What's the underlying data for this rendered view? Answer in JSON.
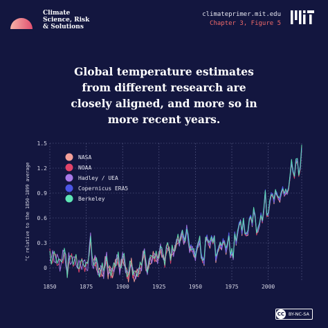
{
  "header": {
    "brand_lines": [
      "Climate",
      "Science, Risk",
      "& Solutions"
    ],
    "site_url": "climateprimer.mit.edu",
    "figure_label": "Chapter 3, Figure 5",
    "license_icon": "CC",
    "license": "BY-NC-SA"
  },
  "headline_lines": [
    "Global temperature estimates",
    "from different research are",
    "closely aligned, and more so in",
    "more recent years."
  ],
  "colors": {
    "background": "#13163f",
    "grid": "#6b6f9c",
    "accent": "#f06a6a"
  },
  "chart_data": {
    "type": "line",
    "title": "",
    "xlabel": "",
    "ylabel": "°C relative to the 1850-1899 average",
    "xlim": [
      1850,
      2023
    ],
    "ylim": [
      -0.15,
      1.5
    ],
    "xticks": [
      1850,
      1875,
      1900,
      1925,
      1950,
      1975,
      2000
    ],
    "yticks": [
      0,
      0.3,
      0.6,
      0.9,
      1.2,
      1.5
    ],
    "ytick_labels": [
      "0",
      "0.3",
      "0.6",
      "0.9",
      "1.2",
      "1.5"
    ],
    "grid": true,
    "legend_position": "top-left",
    "series": [
      {
        "name": "NASA",
        "color": "#f4a09a",
        "start_year": 1880
      },
      {
        "name": "NOAA",
        "color": "#e2446a",
        "start_year": 1850
      },
      {
        "name": "Hadley / UEA",
        "color": "#a779e9",
        "start_year": 1850
      },
      {
        "name": "Copernicus ERA5",
        "color": "#4b56e6",
        "start_year": 1940
      },
      {
        "name": "Berkeley",
        "color": "#5ee6b5",
        "start_year": 1850
      }
    ],
    "years": [
      1850,
      1851,
      1852,
      1853,
      1854,
      1855,
      1856,
      1857,
      1858,
      1859,
      1860,
      1861,
      1862,
      1863,
      1864,
      1865,
      1866,
      1867,
      1868,
      1869,
      1870,
      1871,
      1872,
      1873,
      1874,
      1875,
      1876,
      1877,
      1878,
      1879,
      1880,
      1881,
      1882,
      1883,
      1884,
      1885,
      1886,
      1887,
      1888,
      1889,
      1890,
      1891,
      1892,
      1893,
      1894,
      1895,
      1896,
      1897,
      1898,
      1899,
      1900,
      1901,
      1902,
      1903,
      1904,
      1905,
      1906,
      1907,
      1908,
      1909,
      1910,
      1911,
      1912,
      1913,
      1914,
      1915,
      1916,
      1917,
      1918,
      1919,
      1920,
      1921,
      1922,
      1923,
      1924,
      1925,
      1926,
      1927,
      1928,
      1929,
      1930,
      1931,
      1932,
      1933,
      1934,
      1935,
      1936,
      1937,
      1938,
      1939,
      1940,
      1941,
      1942,
      1943,
      1944,
      1945,
      1946,
      1947,
      1948,
      1949,
      1950,
      1951,
      1952,
      1953,
      1954,
      1955,
      1956,
      1957,
      1958,
      1959,
      1960,
      1961,
      1962,
      1963,
      1964,
      1965,
      1966,
      1967,
      1968,
      1969,
      1970,
      1971,
      1972,
      1973,
      1974,
      1975,
      1976,
      1977,
      1978,
      1979,
      1980,
      1981,
      1982,
      1983,
      1984,
      1985,
      1986,
      1987,
      1988,
      1989,
      1990,
      1991,
      1992,
      1993,
      1994,
      1995,
      1996,
      1997,
      1998,
      1999,
      2000,
      2001,
      2002,
      2003,
      2004,
      2005,
      2006,
      2007,
      2008,
      2009,
      2010,
      2011,
      2012,
      2013,
      2014,
      2015,
      2016,
      2017,
      2018,
      2019,
      2020,
      2021,
      2022,
      2023
    ],
    "values": [
      0.17,
      0.12,
      0.12,
      0.1,
      0.14,
      0.12,
      0.05,
      0.02,
      0.12,
      0.14,
      0.15,
      0.1,
      -0.05,
      0.1,
      0.05,
      0.14,
      0.1,
      0.06,
      0.08,
      0.05,
      0.03,
      0.0,
      0.05,
      0.1,
      0.02,
      -0.02,
      0.04,
      0.22,
      0.35,
      0.07,
      0.05,
      0.1,
      0.06,
      -0.02,
      -0.06,
      -0.04,
      -0.02,
      -0.06,
      0.08,
      0.12,
      -0.06,
      0.0,
      -0.05,
      -0.06,
      0.0,
      0.05,
      0.1,
      0.12,
      -0.02,
      0.05,
      0.12,
      0.1,
      0.0,
      -0.06,
      -0.12,
      0.02,
      0.08,
      -0.06,
      -0.1,
      -0.08,
      -0.06,
      -0.06,
      0.0,
      0.02,
      0.16,
      0.18,
      0.02,
      -0.04,
      0.06,
      0.1,
      0.1,
      0.16,
      0.12,
      0.14,
      0.1,
      0.16,
      0.24,
      0.18,
      0.14,
      0.06,
      0.22,
      0.26,
      0.22,
      0.1,
      0.22,
      0.18,
      0.24,
      0.3,
      0.35,
      0.3,
      0.38,
      0.42,
      0.32,
      0.34,
      0.48,
      0.36,
      0.22,
      0.24,
      0.22,
      0.18,
      0.12,
      0.24,
      0.28,
      0.34,
      0.14,
      0.1,
      0.07,
      0.34,
      0.36,
      0.3,
      0.28,
      0.36,
      0.32,
      0.36,
      0.1,
      0.18,
      0.24,
      0.28,
      0.24,
      0.32,
      0.3,
      0.2,
      0.28,
      0.4,
      0.14,
      0.2,
      0.12,
      0.42,
      0.3,
      0.42,
      0.52,
      0.56,
      0.42,
      0.58,
      0.42,
      0.4,
      0.42,
      0.58,
      0.62,
      0.52,
      0.7,
      0.62,
      0.42,
      0.46,
      0.52,
      0.64,
      0.56,
      0.7,
      0.92,
      0.64,
      0.64,
      0.78,
      0.88,
      0.88,
      0.8,
      0.92,
      0.88,
      0.84,
      0.82,
      0.9,
      0.96,
      0.88,
      0.92,
      0.9,
      0.96,
      1.1,
      1.28,
      1.16,
      1.1,
      1.28,
      1.3,
      1.12,
      1.2,
      1.45
    ]
  }
}
